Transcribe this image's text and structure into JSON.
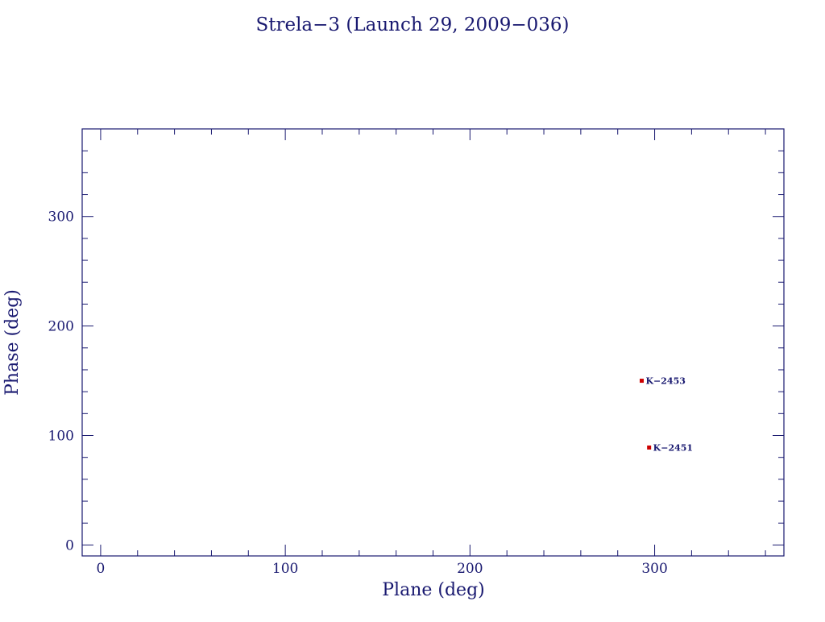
{
  "chart_data": {
    "type": "scatter",
    "title": "Strela−3 (Launch 29, 2009−036)",
    "xlabel": "Plane (deg)",
    "ylabel": "Phase (deg)",
    "xlim": [
      -10,
      370
    ],
    "ylim": [
      -10,
      380
    ],
    "x_ticks": [
      0,
      100,
      200,
      300
    ],
    "x_tick_labels": [
      "0",
      "100",
      "200",
      "300"
    ],
    "x_minor_step": 20,
    "y_ticks": [
      0,
      100,
      200,
      300
    ],
    "y_tick_labels": [
      "0",
      "100",
      "200",
      "300"
    ],
    "y_minor_step": 20,
    "grid": false,
    "points": [
      {
        "label": "K−2453",
        "x": 293,
        "y": 150
      },
      {
        "label": "K−2451",
        "x": 297,
        "y": 89
      }
    ],
    "colors": {
      "axis": "#191970",
      "text": "#191970",
      "marker": "#cc0000"
    }
  }
}
